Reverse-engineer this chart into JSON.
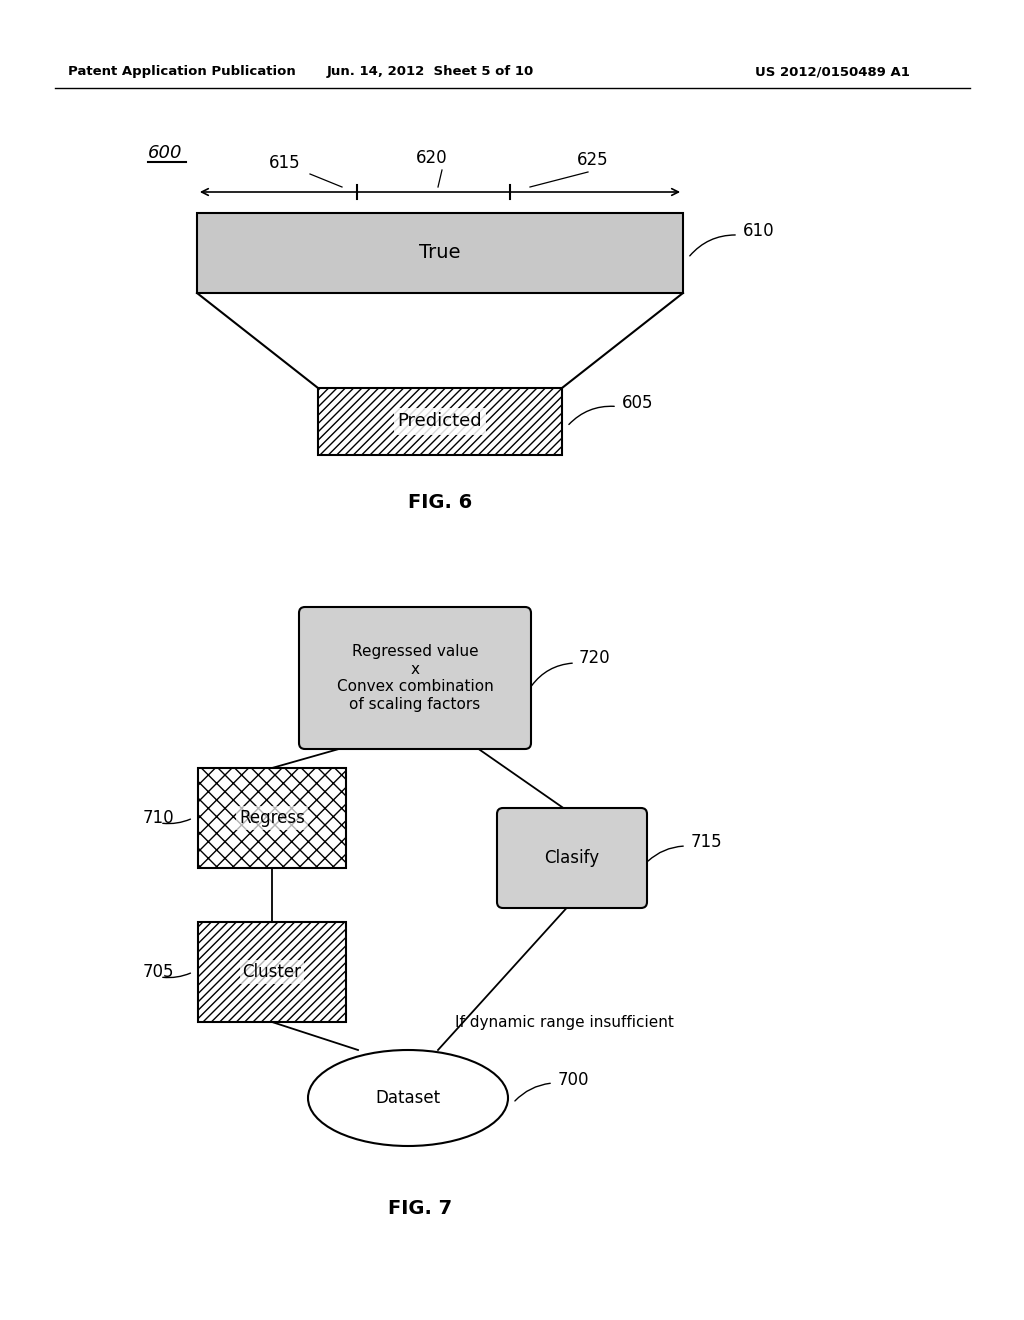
{
  "header_left": "Patent Application Publication",
  "header_center": "Jun. 14, 2012  Sheet 5 of 10",
  "header_right": "US 2012/0150489 A1",
  "fig6_label": "FIG. 6",
  "fig7_label": "FIG. 7",
  "fig6_number": "600",
  "label_610": "610",
  "label_605": "605",
  "label_615": "615",
  "label_620": "620",
  "label_625": "625",
  "true_text": "True",
  "predicted_text": "Predicted",
  "label_700": "700",
  "label_705": "705",
  "label_710": "710",
  "label_715": "715",
  "label_720": "720",
  "dataset_text": "Dataset",
  "cluster_text": "Cluster",
  "regress_text": "Regress",
  "classify_text": "Clasify",
  "top_box_text": "Regressed value\nx\nConvex combination\nof scaling factors",
  "dynamic_range_text": "If dynamic range insufficient",
  "bg_color": "#ffffff",
  "box_fill_gray": "#d0d0d0",
  "hatch_diagonal": "////",
  "hatch_cross": "xxxx"
}
